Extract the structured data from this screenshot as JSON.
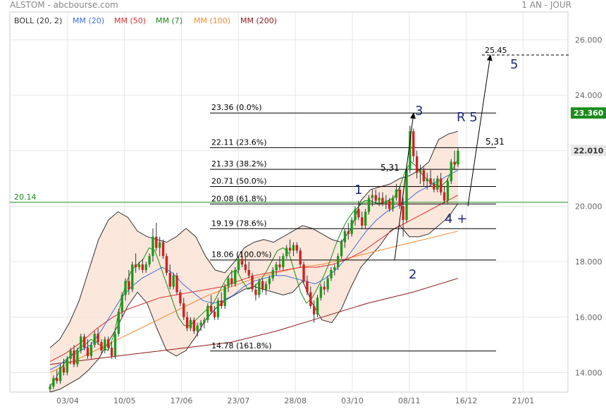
{
  "header": {
    "left": "ALSTOM - abcbourse.com",
    "right": "1 AN - JOUR"
  },
  "indicators": [
    {
      "label": "BOLL (20, 2)",
      "color": "#333333"
    },
    {
      "label": "MM (20)",
      "color": "#3f6fd8"
    },
    {
      "label": "MM (50)",
      "color": "#e03030"
    },
    {
      "label": "MM (7)",
      "color": "#1a8c1a"
    },
    {
      "label": "MM (100)",
      "color": "#f08a30"
    },
    {
      "label": "MM (200)",
      "color": "#8b1a1a"
    }
  ],
  "chart_data": {
    "type": "candlestick",
    "title": "ALSTOM",
    "ylim": [
      13.3,
      27.0
    ],
    "y_ticks": [
      "14.000",
      "16.000",
      "18.000",
      "20.000",
      "22.000",
      "24.000",
      "26.000"
    ],
    "x_ticks": [
      "03/04",
      "10/05",
      "17/06",
      "23/07",
      "28/08",
      "03/10",
      "08/11",
      "16/12",
      "21/01"
    ],
    "grid": true,
    "last_price": "23.360",
    "price_marker": "22.010",
    "support_line": {
      "label": "20.14",
      "value": 20.14
    },
    "fibonacci_levels": [
      {
        "label": "23.36  (0.0%)",
        "value": 23.36
      },
      {
        "label": "22.11  (23.6%)",
        "value": 22.11
      },
      {
        "label": "21.33  (38.2%)",
        "value": 21.33
      },
      {
        "label": "20.71  (50.0%)",
        "value": 20.71
      },
      {
        "label": "20.08  (61.8%)",
        "value": 20.08
      },
      {
        "label": "19.19  (78.6%)",
        "value": 19.19
      },
      {
        "label": "18.06  (100.0%)",
        "value": 18.06
      },
      {
        "label": "14.78  (161.8%)",
        "value": 14.78
      }
    ],
    "target": {
      "label": "25.45",
      "value": 25.45
    },
    "wave_labels": [
      "1",
      "2",
      "3",
      "4 +",
      "5",
      "R 5"
    ],
    "move_labels": [
      "5,31",
      "5,31"
    ],
    "candles": [
      {
        "o": 13.4,
        "h": 13.6,
        "l": 13.3,
        "c": 13.5
      },
      {
        "o": 13.5,
        "h": 13.9,
        "l": 13.4,
        "c": 13.8
      },
      {
        "o": 13.8,
        "h": 14.1,
        "l": 13.6,
        "c": 13.7
      },
      {
        "o": 13.7,
        "h": 14.3,
        "l": 13.6,
        "c": 14.2
      },
      {
        "o": 14.2,
        "h": 14.5,
        "l": 13.9,
        "c": 14.0
      },
      {
        "o": 14.0,
        "h": 14.6,
        "l": 13.9,
        "c": 14.5
      },
      {
        "o": 14.5,
        "h": 14.9,
        "l": 14.3,
        "c": 14.8
      },
      {
        "o": 14.8,
        "h": 15.0,
        "l": 14.2,
        "c": 14.3
      },
      {
        "o": 14.3,
        "h": 14.9,
        "l": 14.2,
        "c": 14.8
      },
      {
        "o": 14.8,
        "h": 15.4,
        "l": 14.7,
        "c": 15.3
      },
      {
        "o": 15.3,
        "h": 15.4,
        "l": 14.8,
        "c": 14.9
      },
      {
        "o": 14.9,
        "h": 15.2,
        "l": 14.5,
        "c": 14.6
      },
      {
        "o": 14.6,
        "h": 15.1,
        "l": 14.5,
        "c": 15.0
      },
      {
        "o": 15.0,
        "h": 15.5,
        "l": 14.9,
        "c": 15.4
      },
      {
        "o": 15.4,
        "h": 15.6,
        "l": 15.0,
        "c": 15.1
      },
      {
        "o": 15.1,
        "h": 15.2,
        "l": 14.7,
        "c": 14.8
      },
      {
        "o": 14.8,
        "h": 15.3,
        "l": 14.7,
        "c": 15.2
      },
      {
        "o": 15.2,
        "h": 15.3,
        "l": 14.8,
        "c": 14.9
      },
      {
        "o": 14.9,
        "h": 15.1,
        "l": 14.5,
        "c": 14.6
      },
      {
        "o": 14.6,
        "h": 15.5,
        "l": 14.5,
        "c": 15.4
      },
      {
        "o": 15.4,
        "h": 16.3,
        "l": 15.3,
        "c": 16.2
      },
      {
        "o": 16.2,
        "h": 16.9,
        "l": 16.0,
        "c": 16.8
      },
      {
        "o": 16.8,
        "h": 17.4,
        "l": 16.6,
        "c": 17.3
      },
      {
        "o": 17.3,
        "h": 17.7,
        "l": 16.8,
        "c": 17.0
      },
      {
        "o": 17.0,
        "h": 18.0,
        "l": 16.9,
        "c": 17.9
      },
      {
        "o": 17.9,
        "h": 18.3,
        "l": 17.6,
        "c": 17.8
      },
      {
        "o": 17.8,
        "h": 18.0,
        "l": 17.7,
        "c": 17.9
      },
      {
        "o": 17.9,
        "h": 18.1,
        "l": 17.6,
        "c": 17.7
      },
      {
        "o": 17.7,
        "h": 18.0,
        "l": 17.6,
        "c": 17.9
      },
      {
        "o": 17.9,
        "h": 18.3,
        "l": 17.8,
        "c": 18.2
      },
      {
        "o": 18.2,
        "h": 19.2,
        "l": 18.0,
        "c": 18.9
      },
      {
        "o": 18.9,
        "h": 19.4,
        "l": 18.4,
        "c": 18.5
      },
      {
        "o": 18.5,
        "h": 18.9,
        "l": 18.2,
        "c": 18.7
      },
      {
        "o": 18.7,
        "h": 18.8,
        "l": 18.1,
        "c": 18.2
      },
      {
        "o": 18.2,
        "h": 18.3,
        "l": 17.5,
        "c": 17.6
      },
      {
        "o": 17.6,
        "h": 17.9,
        "l": 17.0,
        "c": 17.1
      },
      {
        "o": 17.1,
        "h": 17.6,
        "l": 17.0,
        "c": 17.5
      },
      {
        "o": 17.5,
        "h": 17.6,
        "l": 16.8,
        "c": 16.9
      },
      {
        "o": 16.9,
        "h": 17.0,
        "l": 16.4,
        "c": 16.5
      },
      {
        "o": 16.5,
        "h": 16.7,
        "l": 15.9,
        "c": 16.0
      },
      {
        "o": 16.0,
        "h": 16.2,
        "l": 15.5,
        "c": 15.6
      },
      {
        "o": 15.6,
        "h": 16.0,
        "l": 15.5,
        "c": 15.9
      },
      {
        "o": 15.9,
        "h": 16.0,
        "l": 15.4,
        "c": 15.5
      },
      {
        "o": 15.5,
        "h": 15.8,
        "l": 15.3,
        "c": 15.7
      },
      {
        "o": 15.7,
        "h": 15.9,
        "l": 15.5,
        "c": 15.8
      },
      {
        "o": 15.8,
        "h": 16.0,
        "l": 15.6,
        "c": 15.9
      },
      {
        "o": 15.9,
        "h": 16.5,
        "l": 15.8,
        "c": 16.4
      },
      {
        "o": 16.4,
        "h": 16.8,
        "l": 16.1,
        "c": 16.2
      },
      {
        "o": 16.2,
        "h": 16.4,
        "l": 15.9,
        "c": 16.0
      },
      {
        "o": 16.0,
        "h": 16.7,
        "l": 15.9,
        "c": 16.6
      },
      {
        "o": 16.6,
        "h": 16.9,
        "l": 16.3,
        "c": 16.4
      },
      {
        "o": 16.4,
        "h": 17.2,
        "l": 16.3,
        "c": 17.1
      },
      {
        "o": 17.1,
        "h": 17.5,
        "l": 16.9,
        "c": 17.4
      },
      {
        "o": 17.4,
        "h": 17.7,
        "l": 17.1,
        "c": 17.2
      },
      {
        "o": 17.2,
        "h": 17.8,
        "l": 17.1,
        "c": 17.7
      },
      {
        "o": 17.7,
        "h": 18.2,
        "l": 17.6,
        "c": 18.1
      },
      {
        "o": 18.1,
        "h": 18.4,
        "l": 17.8,
        "c": 17.9
      },
      {
        "o": 17.9,
        "h": 18.2,
        "l": 17.6,
        "c": 17.7
      },
      {
        "o": 17.7,
        "h": 18.0,
        "l": 17.4,
        "c": 17.5
      },
      {
        "o": 17.5,
        "h": 17.6,
        "l": 16.9,
        "c": 17.0
      },
      {
        "o": 17.0,
        "h": 17.2,
        "l": 16.6,
        "c": 16.8
      },
      {
        "o": 16.8,
        "h": 17.4,
        "l": 16.7,
        "c": 17.3
      },
      {
        "o": 17.3,
        "h": 17.4,
        "l": 16.9,
        "c": 17.0
      },
      {
        "o": 17.0,
        "h": 17.3,
        "l": 16.8,
        "c": 17.2
      },
      {
        "o": 17.2,
        "h": 17.5,
        "l": 17.0,
        "c": 17.4
      },
      {
        "o": 17.4,
        "h": 17.8,
        "l": 17.3,
        "c": 17.7
      },
      {
        "o": 17.7,
        "h": 18.0,
        "l": 17.5,
        "c": 17.9
      },
      {
        "o": 17.9,
        "h": 18.2,
        "l": 17.7,
        "c": 17.8
      },
      {
        "o": 17.8,
        "h": 18.3,
        "l": 17.7,
        "c": 18.2
      },
      {
        "o": 18.2,
        "h": 18.6,
        "l": 18.1,
        "c": 18.5
      },
      {
        "o": 18.5,
        "h": 18.8,
        "l": 18.3,
        "c": 18.4
      },
      {
        "o": 18.4,
        "h": 18.7,
        "l": 18.2,
        "c": 18.6
      },
      {
        "o": 18.6,
        "h": 18.7,
        "l": 18.3,
        "c": 18.4
      },
      {
        "o": 18.4,
        "h": 18.5,
        "l": 17.8,
        "c": 17.9
      },
      {
        "o": 17.9,
        "h": 18.0,
        "l": 17.2,
        "c": 17.3
      },
      {
        "o": 17.3,
        "h": 17.5,
        "l": 16.8,
        "c": 16.9
      },
      {
        "o": 16.9,
        "h": 17.1,
        "l": 16.3,
        "c": 16.4
      },
      {
        "o": 16.4,
        "h": 16.6,
        "l": 15.8,
        "c": 16.1
      },
      {
        "o": 16.1,
        "h": 16.8,
        "l": 16.0,
        "c": 16.7
      },
      {
        "o": 16.7,
        "h": 17.2,
        "l": 16.6,
        "c": 17.1
      },
      {
        "o": 17.1,
        "h": 17.3,
        "l": 16.8,
        "c": 17.0
      },
      {
        "o": 17.0,
        "h": 17.5,
        "l": 16.9,
        "c": 17.4
      },
      {
        "o": 17.4,
        "h": 17.8,
        "l": 17.3,
        "c": 17.7
      },
      {
        "o": 17.7,
        "h": 17.9,
        "l": 17.5,
        "c": 17.8
      },
      {
        "o": 17.8,
        "h": 18.3,
        "l": 17.7,
        "c": 18.2
      },
      {
        "o": 18.2,
        "h": 18.8,
        "l": 18.1,
        "c": 18.7
      },
      {
        "o": 18.7,
        "h": 19.2,
        "l": 18.5,
        "c": 19.1
      },
      {
        "o": 19.1,
        "h": 19.4,
        "l": 18.8,
        "c": 19.0
      },
      {
        "o": 19.0,
        "h": 19.6,
        "l": 18.9,
        "c": 19.5
      },
      {
        "o": 19.5,
        "h": 20.0,
        "l": 19.3,
        "c": 19.9
      },
      {
        "o": 19.9,
        "h": 20.2,
        "l": 19.5,
        "c": 19.6
      },
      {
        "o": 19.6,
        "h": 19.8,
        "l": 19.2,
        "c": 19.3
      },
      {
        "o": 19.3,
        "h": 19.9,
        "l": 19.2,
        "c": 19.8
      },
      {
        "o": 19.8,
        "h": 20.4,
        "l": 19.7,
        "c": 20.3
      },
      {
        "o": 20.3,
        "h": 20.6,
        "l": 20.0,
        "c": 20.4
      },
      {
        "o": 20.4,
        "h": 20.6,
        "l": 20.1,
        "c": 20.2
      },
      {
        "o": 20.2,
        "h": 20.5,
        "l": 20.0,
        "c": 20.3
      },
      {
        "o": 20.3,
        "h": 20.5,
        "l": 20.0,
        "c": 20.1
      },
      {
        "o": 20.1,
        "h": 20.4,
        "l": 19.9,
        "c": 20.2
      },
      {
        "o": 20.2,
        "h": 20.3,
        "l": 19.8,
        "c": 19.9
      },
      {
        "o": 19.9,
        "h": 20.4,
        "l": 19.8,
        "c": 20.3
      },
      {
        "o": 20.3,
        "h": 20.8,
        "l": 20.2,
        "c": 20.6
      },
      {
        "o": 20.6,
        "h": 20.7,
        "l": 19.9,
        "c": 20.0
      },
      {
        "o": 20.0,
        "h": 20.3,
        "l": 18.9,
        "c": 19.5
      },
      {
        "o": 19.5,
        "h": 21.5,
        "l": 19.4,
        "c": 21.3
      },
      {
        "o": 21.3,
        "h": 22.9,
        "l": 21.2,
        "c": 22.7
      },
      {
        "o": 22.7,
        "h": 22.8,
        "l": 21.6,
        "c": 21.8
      },
      {
        "o": 21.8,
        "h": 22.0,
        "l": 21.0,
        "c": 21.2
      },
      {
        "o": 21.2,
        "h": 21.5,
        "l": 20.8,
        "c": 21.3
      },
      {
        "o": 21.3,
        "h": 21.4,
        "l": 20.7,
        "c": 20.9
      },
      {
        "o": 20.9,
        "h": 21.2,
        "l": 20.6,
        "c": 21.0
      },
      {
        "o": 21.0,
        "h": 21.3,
        "l": 20.7,
        "c": 20.8
      },
      {
        "o": 20.8,
        "h": 21.0,
        "l": 20.5,
        "c": 20.6
      },
      {
        "o": 20.6,
        "h": 21.1,
        "l": 20.5,
        "c": 21.0
      },
      {
        "o": 21.0,
        "h": 21.2,
        "l": 20.4,
        "c": 20.5
      },
      {
        "o": 20.5,
        "h": 20.7,
        "l": 20.1,
        "c": 20.2
      },
      {
        "o": 20.2,
        "h": 21.0,
        "l": 20.1,
        "c": 20.9
      },
      {
        "o": 20.9,
        "h": 21.7,
        "l": 20.8,
        "c": 21.6
      },
      {
        "o": 21.6,
        "h": 22.0,
        "l": 21.3,
        "c": 21.5
      },
      {
        "o": 21.5,
        "h": 22.1,
        "l": 21.4,
        "c": 22.0
      }
    ],
    "bollinger_upper": [
      14.9,
      15.2,
      15.8,
      16.6,
      17.7,
      18.8,
      19.5,
      19.8,
      19.6,
      19.1,
      18.9,
      18.8,
      18.7,
      18.9,
      19.2,
      18.9,
      18.2,
      17.7,
      17.6,
      18.0,
      18.5,
      18.7,
      18.8,
      18.7,
      18.9,
      19.1,
      19.3,
      19.2,
      19.0,
      18.8,
      18.7,
      19.2,
      20.2,
      20.6,
      20.7,
      20.8,
      21.0,
      21.1,
      21.3,
      21.6,
      22.4,
      22.6,
      22.7
    ],
    "bollinger_lower": [
      13.3,
      13.4,
      13.6,
      13.8,
      14.1,
      14.5,
      15.1,
      15.7,
      16.4,
      16.9,
      16.5,
      15.6,
      14.8,
      14.6,
      14.8,
      15.3,
      15.9,
      16.3,
      16.6,
      16.8,
      17.0,
      17.1,
      17.0,
      16.9,
      16.8,
      16.9,
      17.3,
      16.5,
      15.9,
      15.8,
      16.3,
      17.1,
      17.8,
      18.2,
      18.6,
      19.1,
      19.3,
      18.9,
      18.9,
      19.0,
      19.3,
      19.6,
      20.1
    ],
    "ma_7": [
      13.5,
      13.8,
      14.2,
      14.5,
      14.7,
      14.9,
      15.0,
      15.2,
      15.1,
      14.9,
      14.8,
      15.4,
      16.4,
      17.2,
      17.7,
      17.9,
      18.1,
      18.5,
      18.4,
      17.8,
      17.2,
      16.6,
      16.0,
      15.7,
      15.7,
      15.9,
      16.1,
      16.3,
      16.5,
      16.9,
      17.3,
      17.6,
      17.7,
      17.3,
      17.0,
      17.1,
      17.3,
      17.6,
      18.0,
      18.4,
      18.5,
      18.3,
      17.6,
      16.9,
      16.5,
      16.7,
      17.1,
      17.5,
      18.0,
      18.6,
      19.1,
      19.5,
      19.8,
      20.0,
      20.2,
      20.2,
      20.1,
      20.1,
      20.2,
      20.3,
      20.7,
      21.3,
      21.6,
      21.4,
      21.1,
      20.9,
      20.8,
      20.7,
      20.9,
      21.3,
      21.7
    ],
    "ma_20": [
      14.1,
      14.3,
      14.6,
      14.8,
      15.0,
      15.5,
      16.1,
      16.7,
      17.1,
      17.4,
      17.6,
      17.8,
      17.6,
      17.2,
      16.9,
      16.6,
      16.5,
      16.6,
      16.8,
      17.1,
      17.3,
      17.4,
      17.5,
      17.5,
      17.4,
      17.3,
      17.2,
      17.4,
      17.7,
      18.1,
      18.6,
      19.1,
      19.5,
      19.8,
      20.0,
      20.2,
      20.5,
      20.7,
      20.9,
      21.1,
      21.3
    ],
    "ma_50": [
      14.4,
      14.7,
      15.1,
      15.6,
      16.0,
      16.3,
      16.5,
      16.7,
      16.8,
      16.9,
      17.0,
      17.1,
      17.3,
      17.5,
      17.6,
      17.7,
      17.8,
      17.8,
      17.9,
      18.1,
      18.4,
      18.8,
      19.2,
      19.5,
      19.8,
      20.1,
      20.4
    ],
    "ma_100": [
      14.0,
      14.4,
      14.8,
      15.2,
      15.6,
      16.0,
      16.4,
      16.8,
      17.1,
      17.4,
      17.6,
      17.8,
      17.9,
      18.1,
      18.3,
      18.5,
      18.7,
      18.9,
      19.1
    ],
    "ma_200": [
      14.3,
      14.5,
      14.7,
      14.9,
      15.1,
      15.5,
      16.0,
      16.5,
      16.9,
      17.4
    ]
  }
}
